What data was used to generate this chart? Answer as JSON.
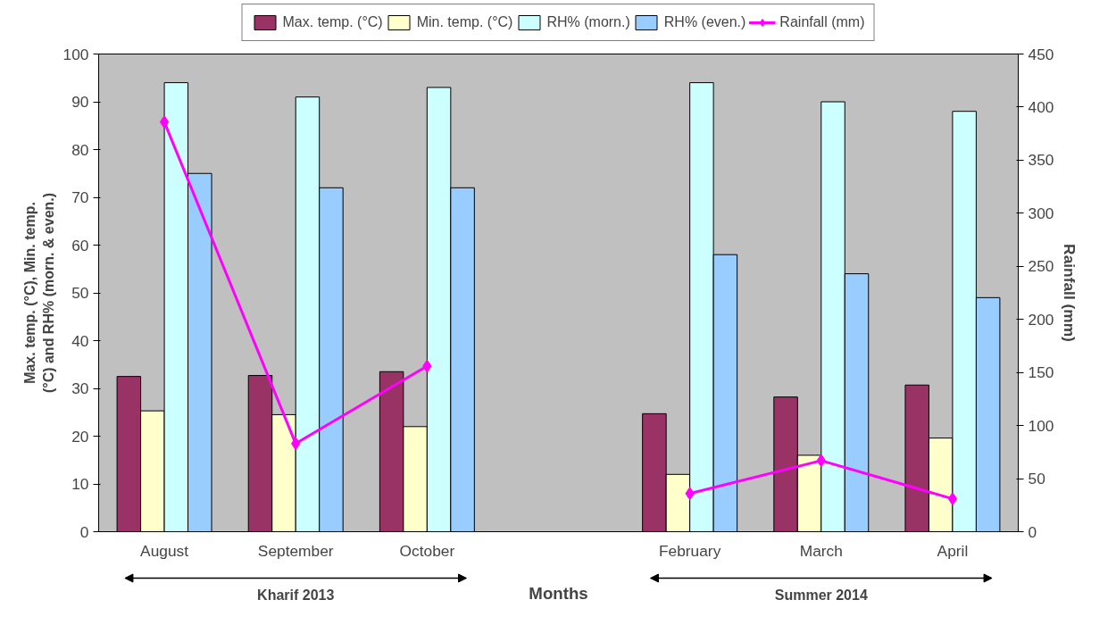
{
  "chart_data": {
    "type": "bar",
    "categories": [
      "August",
      "September",
      "October",
      null,
      "February",
      "March",
      "April"
    ],
    "series": [
      {
        "name": "Max. temp. (°C)",
        "color": "#993366",
        "values": [
          32.5,
          32.7,
          33.5,
          null,
          24.7,
          28.2,
          30.7
        ]
      },
      {
        "name": "Min. temp. (°C)",
        "color": "#ffffcc",
        "values": [
          25.3,
          24.5,
          22,
          null,
          12,
          16,
          19.6
        ]
      },
      {
        "name": "RH% (morn.)",
        "color": "#ccffff",
        "values": [
          94,
          91,
          93,
          null,
          94,
          90,
          88
        ]
      },
      {
        "name": "RH% (even.)",
        "color": "#99ccff",
        "values": [
          75,
          72,
          72,
          null,
          58,
          54,
          49
        ]
      },
      {
        "name": "Rainfall (mm)",
        "color": "#ff00ff",
        "type": "line",
        "axis": "y2",
        "marker": "diamond",
        "values": [
          386,
          83,
          156,
          null,
          36,
          67,
          31
        ]
      }
    ],
    "xlabel": "Months",
    "ylabel": "Max. temp. (°C), Min. temp. (°C) and RH% (morn. & even.)",
    "y2label": "Rainfall (mm)",
    "ylim": [
      0,
      100
    ],
    "yticks": [
      0,
      10,
      20,
      30,
      40,
      50,
      60,
      70,
      80,
      90,
      100
    ],
    "y2lim": [
      0,
      450
    ],
    "y2ticks": [
      0,
      50,
      100,
      150,
      200,
      250,
      300,
      350,
      400,
      450
    ],
    "annotations": [
      "Kharif 2013",
      "Summer 2014"
    ],
    "legend": "top",
    "grid": false
  }
}
